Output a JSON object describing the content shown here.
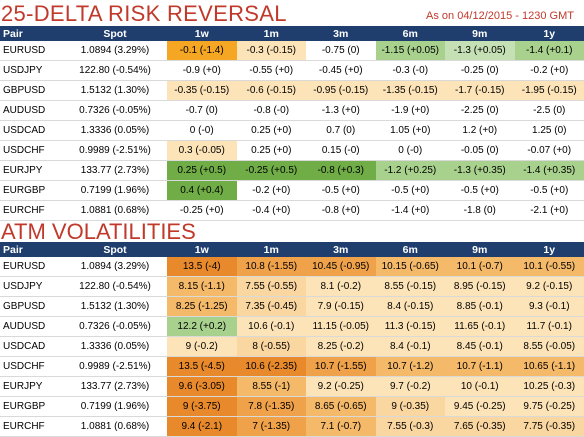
{
  "rr_title": "25-DELTA RISK REVERSAL",
  "as_of": "As on 04/12/2015 - 1230 GMT",
  "atm_title": "ATM VOLATILITIES",
  "headers": [
    "Pair",
    "Spot",
    "1w",
    "1m",
    "3m",
    "6m",
    "9m",
    "1y"
  ],
  "rr_rows": [
    {
      "pair": "EURUSD",
      "spot": "1.0894 (3.29%)",
      "cells": [
        "-0.1 (-1.4)",
        "-0.3 (-0.15)",
        "-0.75 (0)",
        "-1.15 (+0.05)",
        "-1.3 (+0.05)",
        "-1.4 (+0.1)"
      ],
      "colors": [
        "#f5a623",
        "#fde4b8",
        "#ffffff",
        "#a9d18e",
        "#c5e0b4",
        "#a9d18e"
      ]
    },
    {
      "pair": "USDJPY",
      "spot": "122.80 (-0.54%)",
      "cells": [
        "-0.9 (+0)",
        "-0.55 (+0)",
        "-0.45 (+0)",
        "-0.3 (-0)",
        "-0.25 (0)",
        "-0.2 (+0)"
      ],
      "colors": [
        "#ffffff",
        "#ffffff",
        "#ffffff",
        "#ffffff",
        "#ffffff",
        "#ffffff"
      ]
    },
    {
      "pair": "GBPUSD",
      "spot": "1.5132 (1.30%)",
      "cells": [
        "-0.35 (-0.15)",
        "-0.6 (-0.15)",
        "-0.95 (-0.15)",
        "-1.35 (-0.15)",
        "-1.7 (-0.15)",
        "-1.95 (-0.15)"
      ],
      "colors": [
        "#fde4b8",
        "#fde4b8",
        "#fde4b8",
        "#fde4b8",
        "#fde4b8",
        "#fde4b8"
      ]
    },
    {
      "pair": "AUDUSD",
      "spot": "0.7326 (-0.05%)",
      "cells": [
        "-0.7 (0)",
        "-0.8 (-0)",
        "-1.3 (+0)",
        "-1.9 (+0)",
        "-2.25 (0)",
        "-2.5 (0)"
      ],
      "colors": [
        "#ffffff",
        "#ffffff",
        "#ffffff",
        "#ffffff",
        "#ffffff",
        "#ffffff"
      ]
    },
    {
      "pair": "USDCAD",
      "spot": "1.3336 (0.05%)",
      "cells": [
        "0 (-0)",
        "0.25 (+0)",
        "0.7 (0)",
        "1.05 (+0)",
        "1.2 (+0)",
        "1.25 (0)"
      ],
      "colors": [
        "#ffffff",
        "#ffffff",
        "#ffffff",
        "#ffffff",
        "#ffffff",
        "#ffffff"
      ]
    },
    {
      "pair": "USDCHF",
      "spot": "0.9989 (-2.51%)",
      "cells": [
        "0.3 (-0.05)",
        "0.25 (+0)",
        "0.15 (-0)",
        "0 (-0)",
        "-0.05 (0)",
        "-0.07 (+0)"
      ],
      "colors": [
        "#fde4b8",
        "#ffffff",
        "#ffffff",
        "#ffffff",
        "#ffffff",
        "#ffffff"
      ]
    },
    {
      "pair": "EURJPY",
      "spot": "133.77 (2.73%)",
      "cells": [
        "0.25 (+0.5)",
        "-0.25 (+0.5)",
        "-0.8 (+0.3)",
        "-1.2 (+0.25)",
        "-1.3 (+0.35)",
        "-1.4 (+0.35)"
      ],
      "colors": [
        "#70ad47",
        "#70ad47",
        "#70ad47",
        "#a9d18e",
        "#a9d18e",
        "#a9d18e"
      ]
    },
    {
      "pair": "EURGBP",
      "spot": "0.7199 (1.96%)",
      "cells": [
        "0.4 (+0.4)",
        "-0.2 (+0)",
        "-0.5 (+0)",
        "-0.5 (+0)",
        "-0.5 (+0)",
        "-0.5 (+0)"
      ],
      "colors": [
        "#70ad47",
        "#ffffff",
        "#ffffff",
        "#ffffff",
        "#ffffff",
        "#ffffff"
      ]
    },
    {
      "pair": "EURCHF",
      "spot": "1.0881 (0.68%)",
      "cells": [
        "-0.25 (+0)",
        "-0.4 (+0)",
        "-0.8 (+0)",
        "-1.4 (+0)",
        "-1.8 (0)",
        "-2.1 (+0)"
      ],
      "colors": [
        "#ffffff",
        "#ffffff",
        "#ffffff",
        "#ffffff",
        "#ffffff",
        "#ffffff"
      ]
    }
  ],
  "atm_rows": [
    {
      "pair": "EURUSD",
      "spot": "1.0894 (3.29%)",
      "cells": [
        "13.5 (-4)",
        "10.8 (-1.55)",
        "10.45 (-0.95)",
        "10.15 (-0.65)",
        "10.1 (-0.7)",
        "10.1 (-0.55)"
      ],
      "colors": [
        "#e8892b",
        "#f0a24a",
        "#f0a24a",
        "#f5b96a",
        "#f5b96a",
        "#f5b96a"
      ]
    },
    {
      "pair": "USDJPY",
      "spot": "122.80 (-0.54%)",
      "cells": [
        "8.15 (-1.1)",
        "7.55 (-0.55)",
        "8.1 (-0.2)",
        "8.55 (-0.15)",
        "8.95 (-0.15)",
        "9.2 (-0.15)"
      ],
      "colors": [
        "#f5b96a",
        "#fad7a0",
        "#fde4b8",
        "#fde4b8",
        "#fde4b8",
        "#fde4b8"
      ]
    },
    {
      "pair": "GBPUSD",
      "spot": "1.5132 (1.30%)",
      "cells": [
        "8.25 (-1.25)",
        "7.35 (-0.45)",
        "7.9 (-0.15)",
        "8.4 (-0.15)",
        "8.85 (-0.1)",
        "9.3 (-0.1)"
      ],
      "colors": [
        "#f5b96a",
        "#fad7a0",
        "#fde4b8",
        "#fde4b8",
        "#fde4b8",
        "#fde4b8"
      ]
    },
    {
      "pair": "AUDUSD",
      "spot": "0.7326 (-0.05%)",
      "cells": [
        "12.2 (+0.2)",
        "10.6 (-0.1)",
        "11.15 (-0.05)",
        "11.3 (-0.15)",
        "11.65 (-0.1)",
        "11.7 (-0.1)"
      ],
      "colors": [
        "#a9d18e",
        "#fde4b8",
        "#fde4b8",
        "#fde4b8",
        "#fde4b8",
        "#fde4b8"
      ]
    },
    {
      "pair": "USDCAD",
      "spot": "1.3336 (0.05%)",
      "cells": [
        "9 (-0.2)",
        "8 (-0.55)",
        "8.25 (-0.2)",
        "8.4 (-0.1)",
        "8.45 (-0.1)",
        "8.55 (-0.05)"
      ],
      "colors": [
        "#fde4b8",
        "#fad7a0",
        "#fde4b8",
        "#fde4b8",
        "#fde4b8",
        "#fde4b8"
      ]
    },
    {
      "pair": "USDCHF",
      "spot": "0.9989 (-2.51%)",
      "cells": [
        "13.5 (-4.5)",
        "10.6 (-2.35)",
        "10.7 (-1.55)",
        "10.7 (-1.2)",
        "10.7 (-1.1)",
        "10.65 (-1.1)"
      ],
      "colors": [
        "#e8892b",
        "#e8892b",
        "#f0a24a",
        "#f5b96a",
        "#f5b96a",
        "#f5b96a"
      ]
    },
    {
      "pair": "EURJPY",
      "spot": "133.77 (2.73%)",
      "cells": [
        "9.6 (-3.05)",
        "8.55 (-1)",
        "9.2 (-0.25)",
        "9.7 (-0.2)",
        "10 (-0.1)",
        "10.25 (-0.3)"
      ],
      "colors": [
        "#e8892b",
        "#f5b96a",
        "#fde4b8",
        "#fde4b8",
        "#fde4b8",
        "#fde4b8"
      ]
    },
    {
      "pair": "EURGBP",
      "spot": "0.7199 (1.96%)",
      "cells": [
        "9 (-3.75)",
        "7.8 (-1.35)",
        "8.65 (-0.65)",
        "9 (-0.35)",
        "9.45 (-0.25)",
        "9.75 (-0.25)"
      ],
      "colors": [
        "#e8892b",
        "#f0a24a",
        "#f5b96a",
        "#fad7a0",
        "#fde4b8",
        "#fde4b8"
      ]
    },
    {
      "pair": "EURCHF",
      "spot": "1.0881 (0.68%)",
      "cells": [
        "9.4 (-2.1)",
        "7 (-1.35)",
        "7.1 (-0.7)",
        "7.55 (-0.3)",
        "7.65 (-0.35)",
        "7.75 (-0.35)"
      ],
      "colors": [
        "#e8892b",
        "#f0a24a",
        "#f5b96a",
        "#fad7a0",
        "#fad7a0",
        "#fad7a0"
      ]
    }
  ]
}
